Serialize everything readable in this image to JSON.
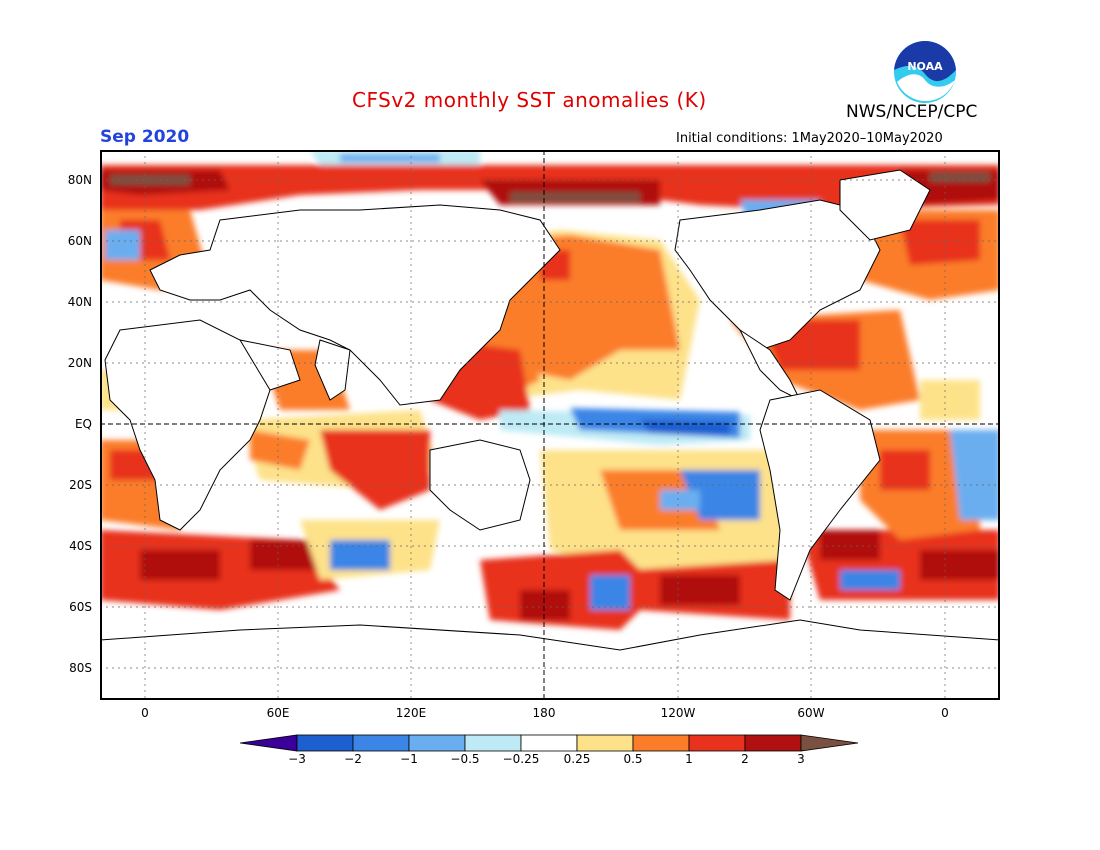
{
  "title": "CFSv2 monthly SST anomalies (K)",
  "agency": "NWS/NCEP/CPC",
  "logo_text": "NOAA",
  "month": "Sep 2020",
  "initial_conditions": "Initial conditions: 1May2020–10May2020",
  "lat_labels": [
    "80N",
    "60N",
    "40N",
    "20N",
    "EQ",
    "20S",
    "40S",
    "60S",
    "80S"
  ],
  "lon_labels": [
    "0",
    "60E",
    "120E",
    "180",
    "120W",
    "60W",
    "0"
  ],
  "colorbar": {
    "labels": [
      "−3",
      "−2",
      "−1",
      "−0.5",
      "−0.25",
      "0.25",
      "0.5",
      "1",
      "2",
      "3"
    ],
    "colors": [
      "#3a0099",
      "#1e5fd0",
      "#3a85e6",
      "#6aaef0",
      "#bdeaf5",
      "#ffffff",
      "#fde28a",
      "#fb7d2a",
      "#e8321e",
      "#b01010",
      "#7a5040"
    ]
  },
  "colors": {
    "title": "#e00000",
    "month": "#2244dd",
    "positive_strong": "#b01010",
    "positive": "#e8321e",
    "positive_weak": "#fb7d2a",
    "positive_faint": "#fde28a",
    "negative_faint": "#bdeaf5",
    "negative": "#3a85e6"
  }
}
